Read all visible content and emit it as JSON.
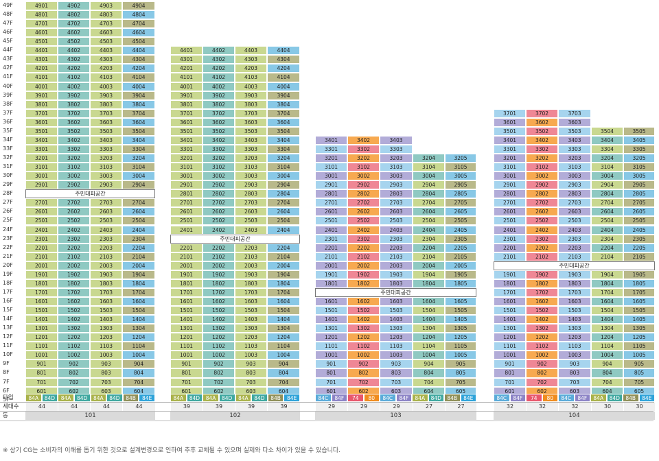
{
  "floors": [
    "49F",
    "48F",
    "47F",
    "46F",
    "45F",
    "44F",
    "43F",
    "42F",
    "41F",
    "40F",
    "39F",
    "38F",
    "37F",
    "36F",
    "35F",
    "34F",
    "33F",
    "32F",
    "31F",
    "30F",
    "29F",
    "28F",
    "27F",
    "26F",
    "25F",
    "24F",
    "23F",
    "22F",
    "21F",
    "20F",
    "19F",
    "18F",
    "17F",
    "16F",
    "15F",
    "14F",
    "13F",
    "12F",
    "11F",
    "10F",
    "9F",
    "8F",
    "7F",
    "6F",
    "5F"
  ],
  "row_headers": {
    "type": "타입",
    "households": "세대수",
    "building": "동"
  },
  "colors": {
    "84A": "#c9d890",
    "84D": "#8fc9c2",
    "84B": "#b9b98a",
    "84E": "#88c8e6",
    "84C": "#a6d4ee",
    "84F": "#b2acd8",
    "74": "#ef8795",
    "80": "#f7a950",
    "shelter": "#ffffff"
  },
  "type_colors": {
    "84A": "#a9b24a",
    "84D": "#3fa8a0",
    "84B": "#8f8f58",
    "84E": "#2ea3d9",
    "84C": "#5aabd9",
    "84F": "#8c83c6",
    "74": "#e8576c",
    "80": "#f08c1e"
  },
  "buildings": [
    {
      "id": "101",
      "top_floor": 49,
      "shelter_floor": 28,
      "columns": [
        {
          "type": "84A",
          "households": "44",
          "stack": "01",
          "top": 49,
          "colors": [
            "84A"
          ]
        },
        {
          "type": "84D",
          "households": "44",
          "stack": "02",
          "top": 49,
          "colors": [
            "84D"
          ]
        },
        {
          "type": "84A",
          "households": "44",
          "stack": "03",
          "top": 49,
          "colors": [
            "84A"
          ]
        },
        {
          "type": "84B",
          "households": "44",
          "stack": "04",
          "top": 49,
          "colors": [
            "84B"
          ]
        }
      ],
      "type_labels": [
        "84A",
        "84D",
        "84A",
        "84D",
        "84A",
        "84D",
        "84B",
        "84E"
      ]
    },
    {
      "id": "102",
      "top_floor": 44,
      "shelter_floor": 23,
      "columns": [
        {
          "type": "84A",
          "households": "39",
          "stack": "01",
          "top": 44
        },
        {
          "type": "84D",
          "households": "39",
          "stack": "02",
          "top": 44
        },
        {
          "type": "84A",
          "households": "39",
          "stack": "03",
          "top": 44
        },
        {
          "type": "84B",
          "households": "39",
          "stack": "04",
          "top": 44
        }
      ],
      "type_labels": [
        "84A",
        "84D",
        "84A",
        "84D",
        "84A",
        "84D",
        "84B",
        "84E"
      ]
    },
    {
      "id": "103",
      "top_floor": 34,
      "shelter_floor": 17,
      "columns": [
        {
          "type": "84C",
          "households": "29",
          "stack": "01",
          "top": 34
        },
        {
          "type": "74",
          "households": "29",
          "stack": "02",
          "top": 34
        },
        {
          "type": "84C",
          "households": "29",
          "stack": "03",
          "top": 34
        },
        {
          "type": "84A",
          "households": "27",
          "stack": "04",
          "top": 32
        },
        {
          "type": "84B",
          "households": "27",
          "stack": "05",
          "top": 32
        }
      ],
      "type_labels": [
        "84C",
        "84F",
        "74",
        "80",
        "84C",
        "84F",
        "84A",
        "84D",
        "84B",
        "84E"
      ]
    },
    {
      "id": "104",
      "top_floor": 37,
      "shelter_floor": 20,
      "columns": [
        {
          "type": "84C",
          "households": "32",
          "stack": "01",
          "top": 37
        },
        {
          "type": "74",
          "households": "32",
          "stack": "02",
          "top": 37
        },
        {
          "type": "84C",
          "households": "32",
          "stack": "03",
          "top": 37
        },
        {
          "type": "84A",
          "households": "30",
          "stack": "04",
          "top": 35
        },
        {
          "type": "84B",
          "households": "30",
          "stack": "05",
          "top": 35
        }
      ],
      "type_labels": [
        "84C",
        "84F",
        "74",
        "80",
        "84C",
        "84F",
        "84A",
        "84D",
        "84B",
        "84E"
      ]
    }
  ],
  "shelter_label": "주민대피공간",
  "footnote": "※ 상기 CG는 소비자의 이해를 돕기 위한 것으로 설계변경으로 인하여 추후 교체될 수 있으며 실제와 다소 차이가 있을 수 있습니다."
}
